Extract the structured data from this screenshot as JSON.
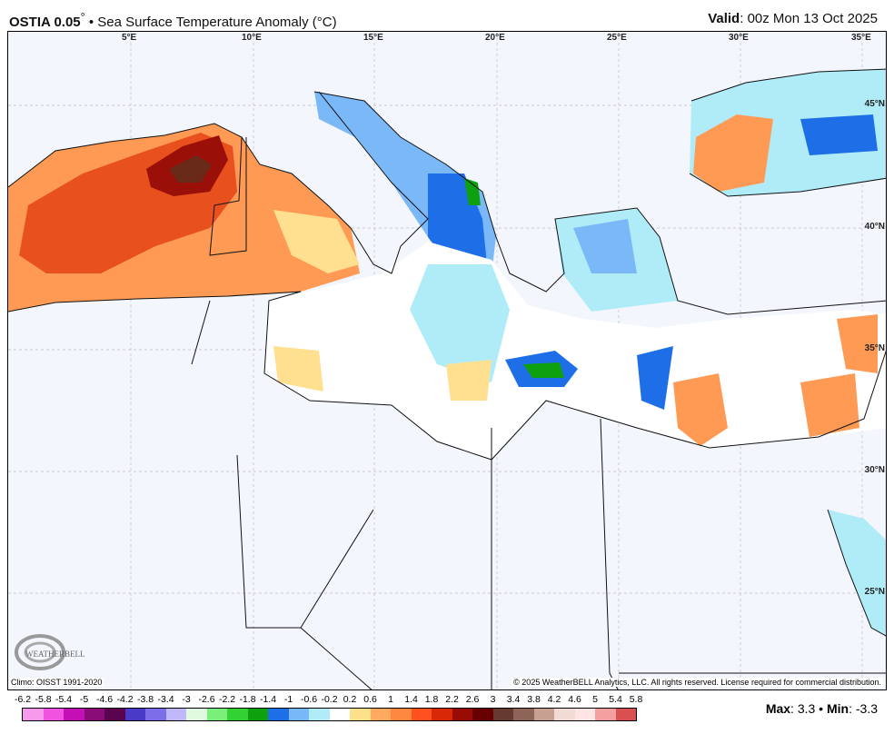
{
  "header": {
    "model": "OSTIA 0.05",
    "model_suffix": "°",
    "separator": "•",
    "product": "Sea Surface Temperature Anomaly (°C)",
    "valid_label": "Valid",
    "valid_value": ": 00z Mon 13 Oct 2025"
  },
  "map": {
    "lon_labels": [
      "5°E",
      "10°E",
      "15°E",
      "20°E",
      "25°E",
      "30°E",
      "35°E"
    ],
    "lat_labels": [
      "45°N",
      "40°N",
      "35°N",
      "30°N",
      "25°N"
    ],
    "land_color": "#f3f7fd"
  },
  "footer": {
    "climo": "Climo: OISST 1991-2020",
    "copyright": "© 2025 WeatherBELL Analytics, LLC. All rights reserved. License required for commercial distribution.",
    "logo": "WEATHERBELL",
    "max_label": "Max",
    "max_value": ": 3.3",
    "sep": " • ",
    "min_label": "Min",
    "min_value": ": -3.3"
  },
  "colorbar": {
    "labels": [
      "-6.2",
      "-5.8",
      "-5.4",
      "-5",
      "-4.6",
      "-4.2",
      "-3.8",
      "-3.4",
      "-3",
      "-2.6",
      "-2.2",
      "-1.8",
      "-1.4",
      "-1",
      "-0.6",
      "-0.2",
      "0.2",
      "0.6",
      "1",
      "1.4",
      "1.8",
      "2.2",
      "2.6",
      "3",
      "3.4",
      "3.8",
      "4.2",
      "4.6",
      "5",
      "5.4",
      "5.8"
    ],
    "colors": [
      "#f79aee",
      "#f252e0",
      "#c40fb4",
      "#8a0c78",
      "#5a0450",
      "#4a3ac8",
      "#7b6ee8",
      "#c0b8fa",
      "#e0fae0",
      "#7af07a",
      "#34d134",
      "#0fa00f",
      "#1e6ee8",
      "#78b8f8",
      "#b0ecf8",
      "#ffffff",
      "#ffe08a",
      "#ffa860",
      "#ff8840",
      "#ff5020",
      "#d82808",
      "#980c04",
      "#680000",
      "#663a30",
      "#8e6458",
      "#c8a092",
      "#f0dcd4",
      "#ffe4e4",
      "#f4a0a0",
      "#d85050"
    ]
  }
}
